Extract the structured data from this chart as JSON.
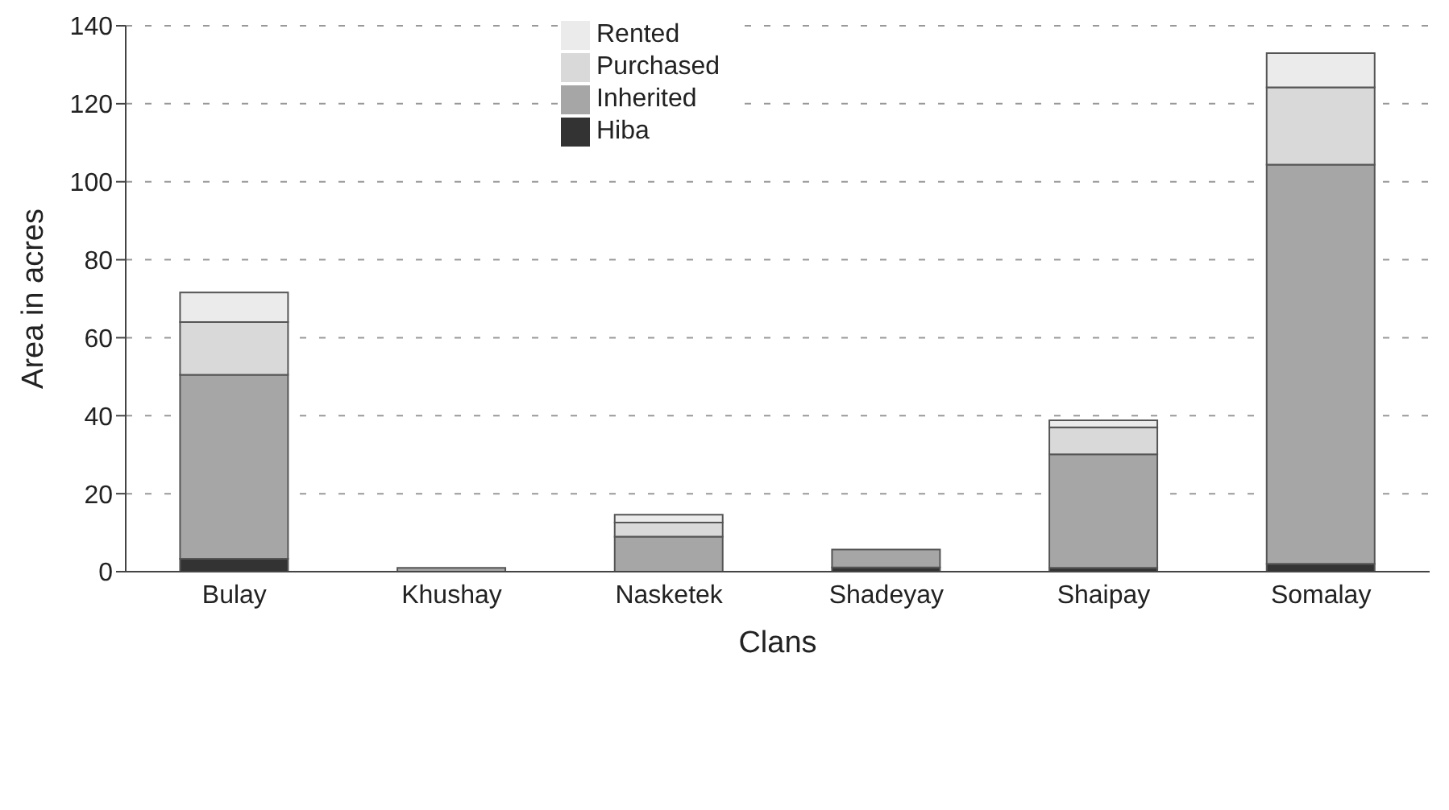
{
  "chart_data": {
    "type": "bar",
    "stacked": true,
    "xlabel": "Clans",
    "ylabel": "Area in acres",
    "categories": [
      "Bulay",
      "Khushay",
      "Nasketek",
      "Shadeyay",
      "Shaipay",
      "Somalay"
    ],
    "series": [
      {
        "name": "Hiba",
        "color": "#333333",
        "values": [
          3.3,
          0,
          0,
          1.1,
          1,
          2
        ]
      },
      {
        "name": "Inherited",
        "color": "#a6a6a6",
        "values": [
          47.2,
          1,
          9,
          4.6,
          29.1,
          102.4
        ]
      },
      {
        "name": "Purchased",
        "color": "#d9d9d9",
        "values": [
          13.5,
          0,
          3.6,
          0,
          6.9,
          19.8
        ]
      },
      {
        "name": "Rented",
        "color": "#ebebeb",
        "values": [
          7.6,
          0,
          2,
          0,
          1.8,
          8.8
        ]
      }
    ],
    "ylim": [
      0,
      140
    ],
    "yticks": [
      0,
      20,
      40,
      60,
      80,
      100,
      120,
      140
    ],
    "grid": "y",
    "legend": "top"
  }
}
